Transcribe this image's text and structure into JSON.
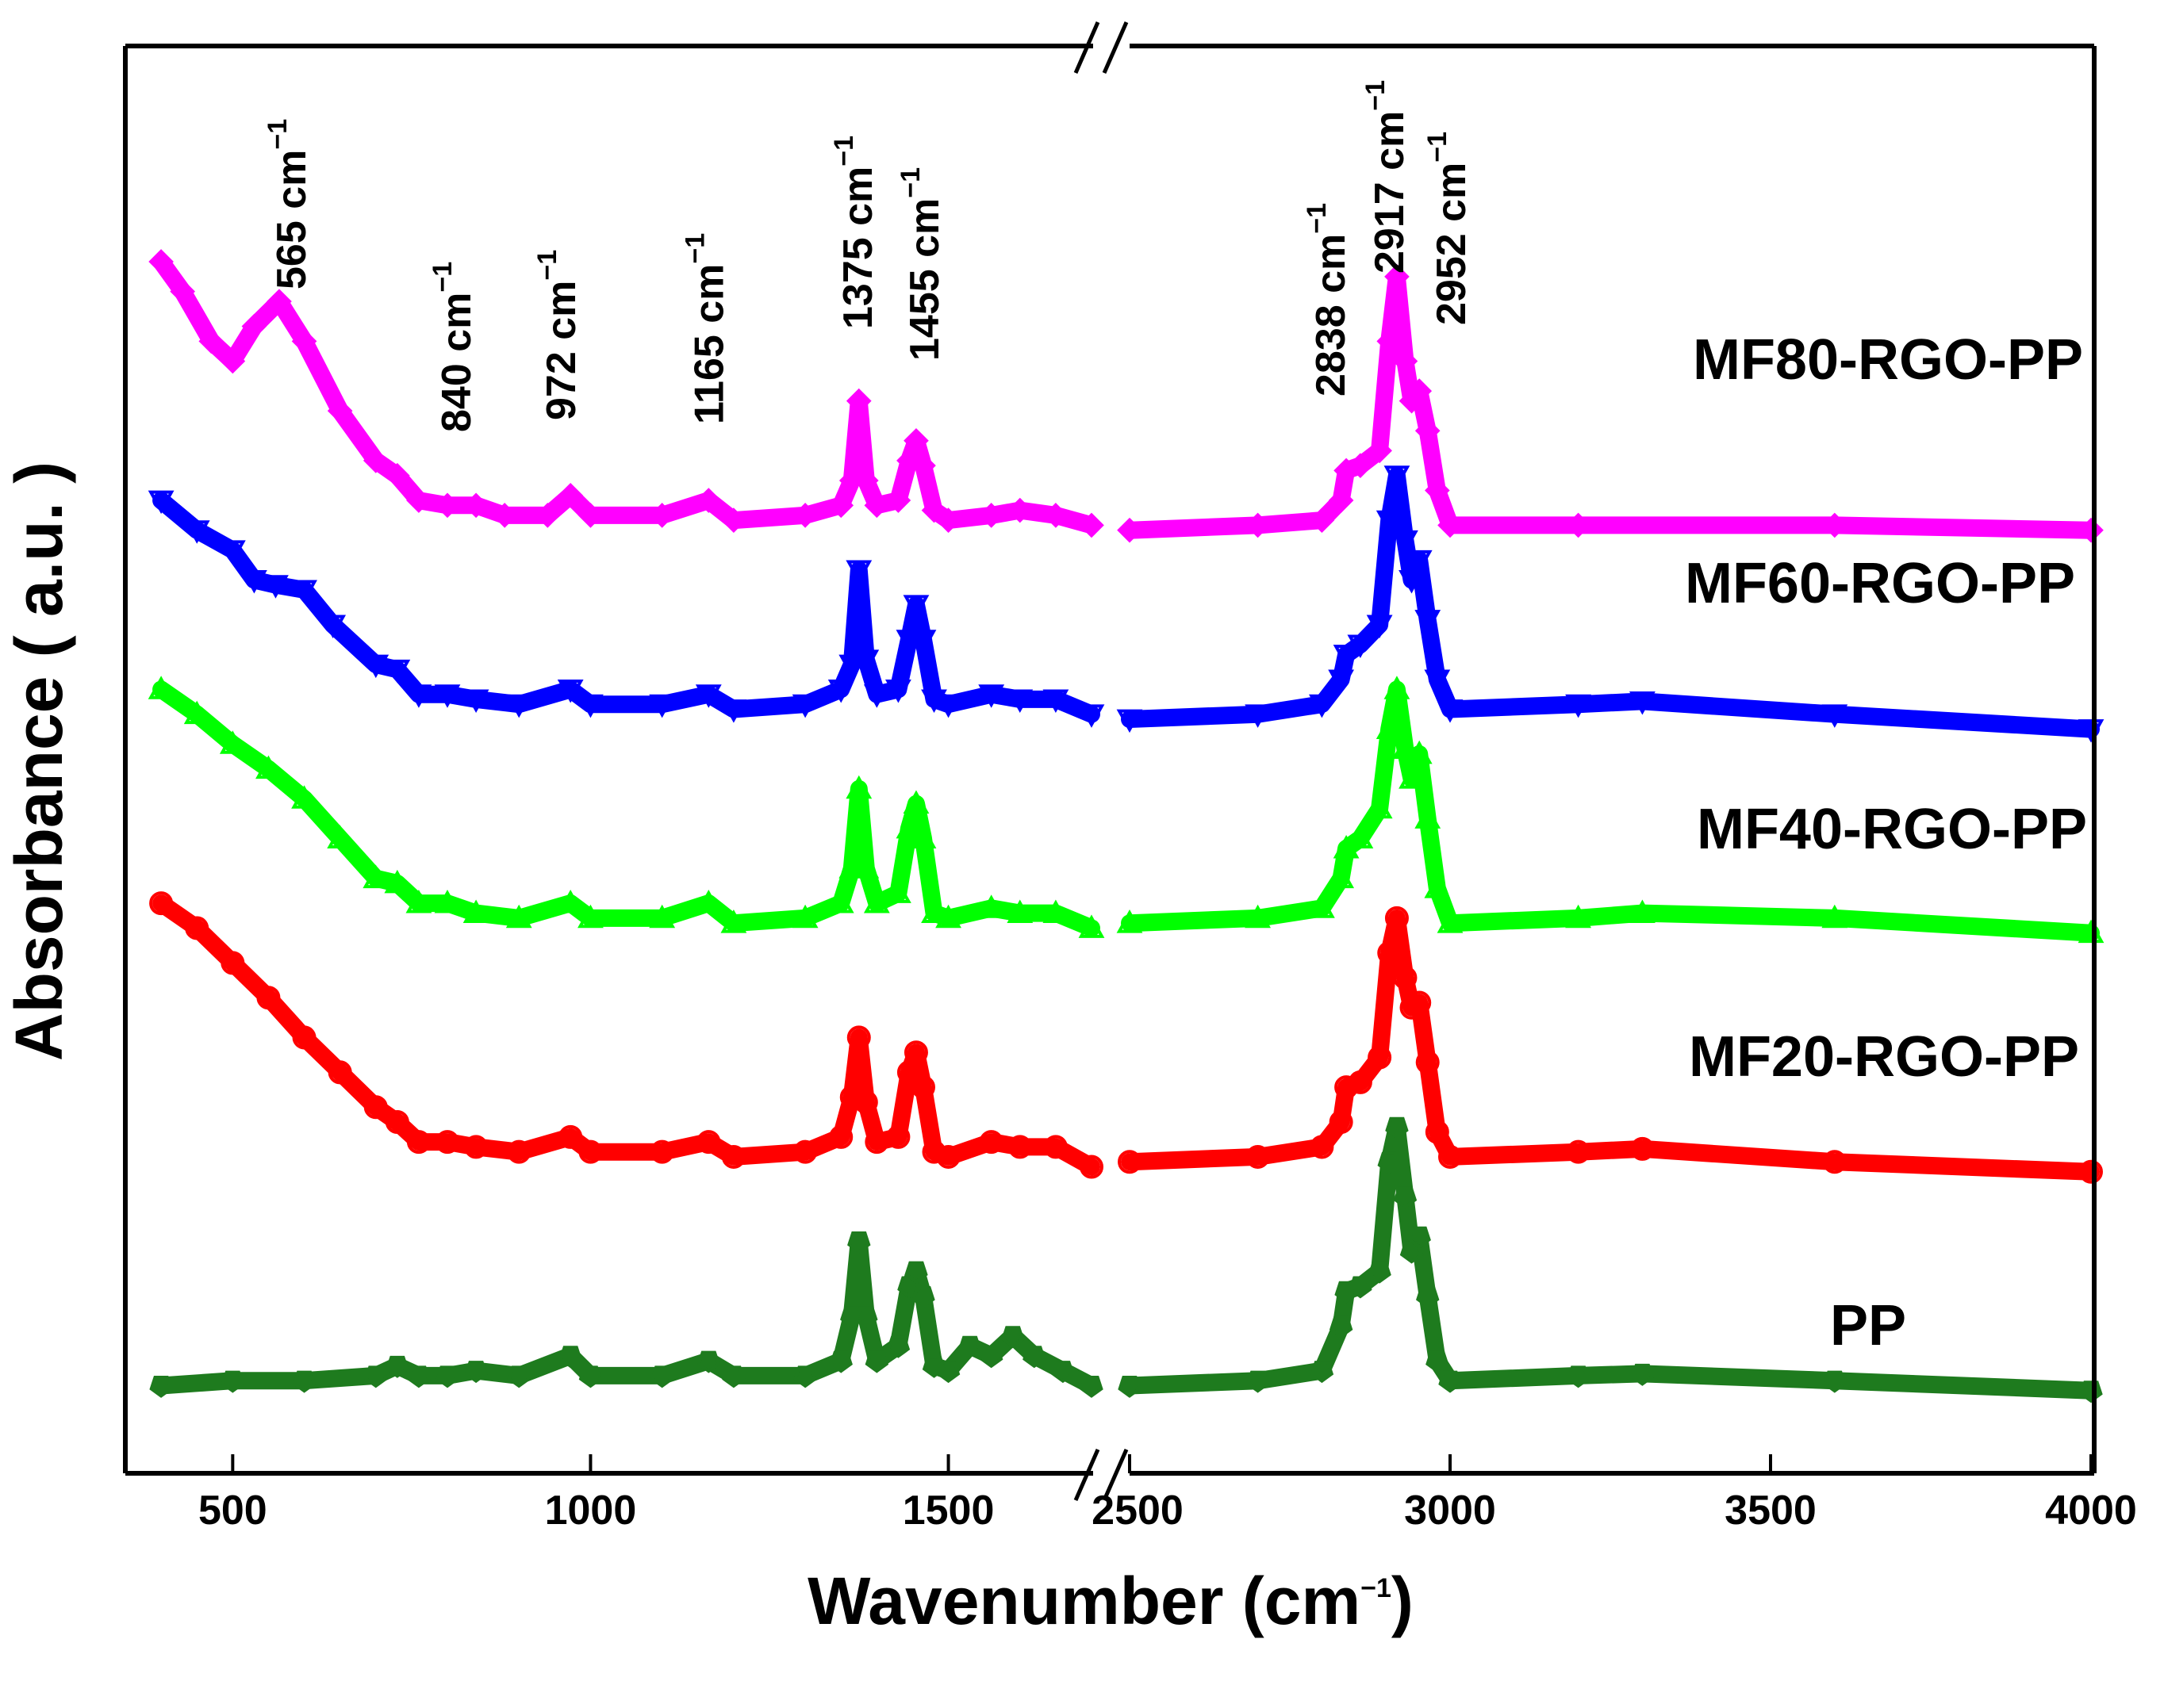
{
  "chart_data": {
    "type": "line",
    "title": "",
    "xlabel": "Wavenumber (cm",
    "xlabel_sup": "−1",
    "xlabel_close": ")",
    "ylabel": "Absorbance ( a.u. )",
    "x_axis_break": [
      1700,
      2500
    ],
    "segments": [
      {
        "xlim": [
          350,
          1700
        ],
        "ticks": [
          500,
          1000,
          1500
        ]
      },
      {
        "xlim": [
          2500,
          4000
        ],
        "ticks": [
          2500,
          3000,
          3500,
          4000
        ]
      }
    ],
    "y_ticks_shown": false,
    "y_range_offsets": [
      0,
      12.5
    ],
    "peak_annotations": [
      {
        "value": "565",
        "unit": "cm",
        "sup": "−1",
        "x": 565
      },
      {
        "value": "840",
        "unit": "cm",
        "sup": "−1",
        "x": 840
      },
      {
        "value": "972",
        "unit": "cm",
        "sup": "−1",
        "x": 972
      },
      {
        "value": "1165",
        "unit": "cm",
        "sup": "−1",
        "x": 1165
      },
      {
        "value": "1375",
        "unit": "cm",
        "sup": "−1",
        "x": 1375
      },
      {
        "value": "1455",
        "unit": "cm",
        "sup": "−1",
        "x": 1455
      },
      {
        "value": "2838",
        "unit": "cm",
        "sup": "−1",
        "x": 2838
      },
      {
        "value": "2917",
        "unit": "cm",
        "sup": "−1",
        "x": 2917
      },
      {
        "value": "2952",
        "unit": "cm",
        "sup": "−1",
        "x": 2952
      }
    ],
    "series": [
      {
        "name": "MF80-RGO-PP",
        "color": "#ff00ff",
        "marker": "diamond",
        "points_left": [
          [
            400,
            11.4
          ],
          [
            430,
            11.1
          ],
          [
            470,
            10.6
          ],
          [
            500,
            10.4
          ],
          [
            530,
            10.75
          ],
          [
            565,
            11.0
          ],
          [
            600,
            10.6
          ],
          [
            650,
            9.9
          ],
          [
            700,
            9.4
          ],
          [
            730,
            9.25
          ],
          [
            760,
            9.0
          ],
          [
            800,
            8.95
          ],
          [
            840,
            8.95
          ],
          [
            880,
            8.85
          ],
          [
            940,
            8.85
          ],
          [
            972,
            9.05
          ],
          [
            1000,
            8.85
          ],
          [
            1100,
            8.85
          ],
          [
            1165,
            9.0
          ],
          [
            1200,
            8.8
          ],
          [
            1300,
            8.85
          ],
          [
            1350,
            8.95
          ],
          [
            1365,
            9.2
          ],
          [
            1375,
            10.0
          ],
          [
            1385,
            9.2
          ],
          [
            1400,
            8.95
          ],
          [
            1430,
            9.0
          ],
          [
            1445,
            9.4
          ],
          [
            1455,
            9.6
          ],
          [
            1465,
            9.35
          ],
          [
            1480,
            8.9
          ],
          [
            1500,
            8.8
          ],
          [
            1560,
            8.85
          ],
          [
            1600,
            8.9
          ],
          [
            1650,
            8.85
          ],
          [
            1700,
            8.75
          ]
        ],
        "points_right": [
          [
            2500,
            8.7
          ],
          [
            2700,
            8.75
          ],
          [
            2800,
            8.8
          ],
          [
            2830,
            9.0
          ],
          [
            2838,
            9.3
          ],
          [
            2860,
            9.35
          ],
          [
            2890,
            9.5
          ],
          [
            2905,
            10.6
          ],
          [
            2917,
            11.25
          ],
          [
            2930,
            10.4
          ],
          [
            2940,
            10.0
          ],
          [
            2952,
            10.1
          ],
          [
            2965,
            9.7
          ],
          [
            2980,
            9.1
          ],
          [
            3000,
            8.75
          ],
          [
            3200,
            8.75
          ],
          [
            3600,
            8.75
          ],
          [
            4000,
            8.7
          ]
        ]
      },
      {
        "name": "MF60-RGO-PP",
        "color": "#0000ff",
        "marker": "triangle-down",
        "points_left": [
          [
            400,
            9.0
          ],
          [
            450,
            8.7
          ],
          [
            500,
            8.5
          ],
          [
            530,
            8.2
          ],
          [
            560,
            8.15
          ],
          [
            600,
            8.1
          ],
          [
            640,
            7.75
          ],
          [
            700,
            7.35
          ],
          [
            730,
            7.3
          ],
          [
            760,
            7.05
          ],
          [
            800,
            7.05
          ],
          [
            840,
            7.0
          ],
          [
            900,
            6.95
          ],
          [
            972,
            7.1
          ],
          [
            1000,
            6.95
          ],
          [
            1100,
            6.95
          ],
          [
            1165,
            7.05
          ],
          [
            1200,
            6.9
          ],
          [
            1300,
            6.95
          ],
          [
            1350,
            7.1
          ],
          [
            1365,
            7.35
          ],
          [
            1375,
            8.3
          ],
          [
            1385,
            7.4
          ],
          [
            1400,
            7.05
          ],
          [
            1430,
            7.1
          ],
          [
            1445,
            7.6
          ],
          [
            1455,
            7.95
          ],
          [
            1465,
            7.6
          ],
          [
            1480,
            7.0
          ],
          [
            1500,
            6.95
          ],
          [
            1560,
            7.05
          ],
          [
            1600,
            7.0
          ],
          [
            1650,
            7.0
          ],
          [
            1700,
            6.85
          ]
        ],
        "points_right": [
          [
            2500,
            6.8
          ],
          [
            2700,
            6.85
          ],
          [
            2800,
            6.95
          ],
          [
            2830,
            7.2
          ],
          [
            2838,
            7.45
          ],
          [
            2860,
            7.55
          ],
          [
            2890,
            7.75
          ],
          [
            2905,
            8.8
          ],
          [
            2917,
            9.25
          ],
          [
            2930,
            8.6
          ],
          [
            2940,
            8.2
          ],
          [
            2952,
            8.4
          ],
          [
            2965,
            7.8
          ],
          [
            2980,
            7.2
          ],
          [
            3000,
            6.9
          ],
          [
            3200,
            6.95
          ],
          [
            3300,
            6.98
          ],
          [
            3600,
            6.85
          ],
          [
            4000,
            6.7
          ]
        ]
      },
      {
        "name": "MF40-RGO-PP",
        "color": "#00ff00",
        "marker": "triangle-up",
        "points_left": [
          [
            400,
            7.1
          ],
          [
            450,
            6.85
          ],
          [
            500,
            6.55
          ],
          [
            550,
            6.3
          ],
          [
            600,
            6.0
          ],
          [
            650,
            5.6
          ],
          [
            700,
            5.2
          ],
          [
            730,
            5.15
          ],
          [
            760,
            4.95
          ],
          [
            800,
            4.95
          ],
          [
            840,
            4.85
          ],
          [
            900,
            4.8
          ],
          [
            972,
            4.95
          ],
          [
            1000,
            4.8
          ],
          [
            1100,
            4.8
          ],
          [
            1165,
            4.95
          ],
          [
            1200,
            4.75
          ],
          [
            1300,
            4.8
          ],
          [
            1350,
            4.95
          ],
          [
            1365,
            5.3
          ],
          [
            1375,
            6.1
          ],
          [
            1385,
            5.3
          ],
          [
            1400,
            4.95
          ],
          [
            1430,
            5.05
          ],
          [
            1445,
            5.7
          ],
          [
            1455,
            5.95
          ],
          [
            1465,
            5.6
          ],
          [
            1480,
            4.85
          ],
          [
            1500,
            4.8
          ],
          [
            1560,
            4.9
          ],
          [
            1600,
            4.85
          ],
          [
            1650,
            4.85
          ],
          [
            1700,
            4.7
          ]
        ],
        "points_right": [
          [
            2500,
            4.75
          ],
          [
            2700,
            4.8
          ],
          [
            2800,
            4.9
          ],
          [
            2830,
            5.2
          ],
          [
            2838,
            5.5
          ],
          [
            2860,
            5.6
          ],
          [
            2890,
            5.9
          ],
          [
            2905,
            6.7
          ],
          [
            2917,
            7.1
          ],
          [
            2930,
            6.5
          ],
          [
            2940,
            6.2
          ],
          [
            2952,
            6.45
          ],
          [
            2965,
            5.8
          ],
          [
            2980,
            5.1
          ],
          [
            3000,
            4.75
          ],
          [
            3200,
            4.8
          ],
          [
            3300,
            4.85
          ],
          [
            3600,
            4.8
          ],
          [
            4000,
            4.65
          ]
        ]
      },
      {
        "name": "MF20-RGO-PP",
        "color": "#ff0000",
        "marker": "circle",
        "points_left": [
          [
            400,
            4.95
          ],
          [
            450,
            4.7
          ],
          [
            500,
            4.35
          ],
          [
            550,
            4.0
          ],
          [
            600,
            3.6
          ],
          [
            650,
            3.25
          ],
          [
            700,
            2.9
          ],
          [
            730,
            2.75
          ],
          [
            760,
            2.55
          ],
          [
            800,
            2.55
          ],
          [
            840,
            2.5
          ],
          [
            900,
            2.45
          ],
          [
            972,
            2.6
          ],
          [
            1000,
            2.45
          ],
          [
            1100,
            2.45
          ],
          [
            1165,
            2.55
          ],
          [
            1200,
            2.4
          ],
          [
            1300,
            2.45
          ],
          [
            1350,
            2.6
          ],
          [
            1365,
            3.0
          ],
          [
            1375,
            3.6
          ],
          [
            1385,
            2.95
          ],
          [
            1400,
            2.55
          ],
          [
            1430,
            2.6
          ],
          [
            1445,
            3.25
          ],
          [
            1455,
            3.45
          ],
          [
            1465,
            3.1
          ],
          [
            1480,
            2.45
          ],
          [
            1500,
            2.4
          ],
          [
            1560,
            2.55
          ],
          [
            1600,
            2.5
          ],
          [
            1650,
            2.5
          ],
          [
            1700,
            2.3
          ]
        ],
        "points_right": [
          [
            2500,
            2.35
          ],
          [
            2700,
            2.4
          ],
          [
            2800,
            2.5
          ],
          [
            2830,
            2.75
          ],
          [
            2838,
            3.1
          ],
          [
            2860,
            3.15
          ],
          [
            2890,
            3.4
          ],
          [
            2905,
            4.45
          ],
          [
            2917,
            4.8
          ],
          [
            2930,
            4.2
          ],
          [
            2940,
            3.9
          ],
          [
            2952,
            3.95
          ],
          [
            2965,
            3.35
          ],
          [
            2980,
            2.65
          ],
          [
            3000,
            2.4
          ],
          [
            3200,
            2.45
          ],
          [
            3300,
            2.48
          ],
          [
            3600,
            2.35
          ],
          [
            4000,
            2.25
          ]
        ]
      },
      {
        "name": "PP",
        "color": "#1e7b1e",
        "marker": "pentagon",
        "points_left": [
          [
            400,
            0.1
          ],
          [
            500,
            0.15
          ],
          [
            600,
            0.15
          ],
          [
            700,
            0.2
          ],
          [
            730,
            0.3
          ],
          [
            760,
            0.2
          ],
          [
            800,
            0.2
          ],
          [
            840,
            0.25
          ],
          [
            900,
            0.2
          ],
          [
            972,
            0.4
          ],
          [
            1000,
            0.2
          ],
          [
            1100,
            0.2
          ],
          [
            1165,
            0.35
          ],
          [
            1200,
            0.2
          ],
          [
            1300,
            0.2
          ],
          [
            1350,
            0.35
          ],
          [
            1365,
            0.8
          ],
          [
            1375,
            1.55
          ],
          [
            1385,
            0.8
          ],
          [
            1400,
            0.35
          ],
          [
            1430,
            0.5
          ],
          [
            1445,
            1.1
          ],
          [
            1455,
            1.25
          ],
          [
            1465,
            1.0
          ],
          [
            1480,
            0.3
          ],
          [
            1500,
            0.25
          ],
          [
            1530,
            0.5
          ],
          [
            1560,
            0.4
          ],
          [
            1590,
            0.6
          ],
          [
            1620,
            0.4
          ],
          [
            1660,
            0.25
          ],
          [
            1700,
            0.1
          ]
        ],
        "points_right": [
          [
            2500,
            0.1
          ],
          [
            2700,
            0.15
          ],
          [
            2800,
            0.25
          ],
          [
            2830,
            0.7
          ],
          [
            2838,
            1.05
          ],
          [
            2860,
            1.1
          ],
          [
            2890,
            1.25
          ],
          [
            2905,
            2.35
          ],
          [
            2917,
            2.7
          ],
          [
            2930,
            2.0
          ],
          [
            2940,
            1.45
          ],
          [
            2952,
            1.6
          ],
          [
            2965,
            1.0
          ],
          [
            2980,
            0.35
          ],
          [
            3000,
            0.15
          ],
          [
            3200,
            0.2
          ],
          [
            3300,
            0.22
          ],
          [
            3600,
            0.15
          ],
          [
            4000,
            0.05
          ]
        ]
      }
    ]
  }
}
